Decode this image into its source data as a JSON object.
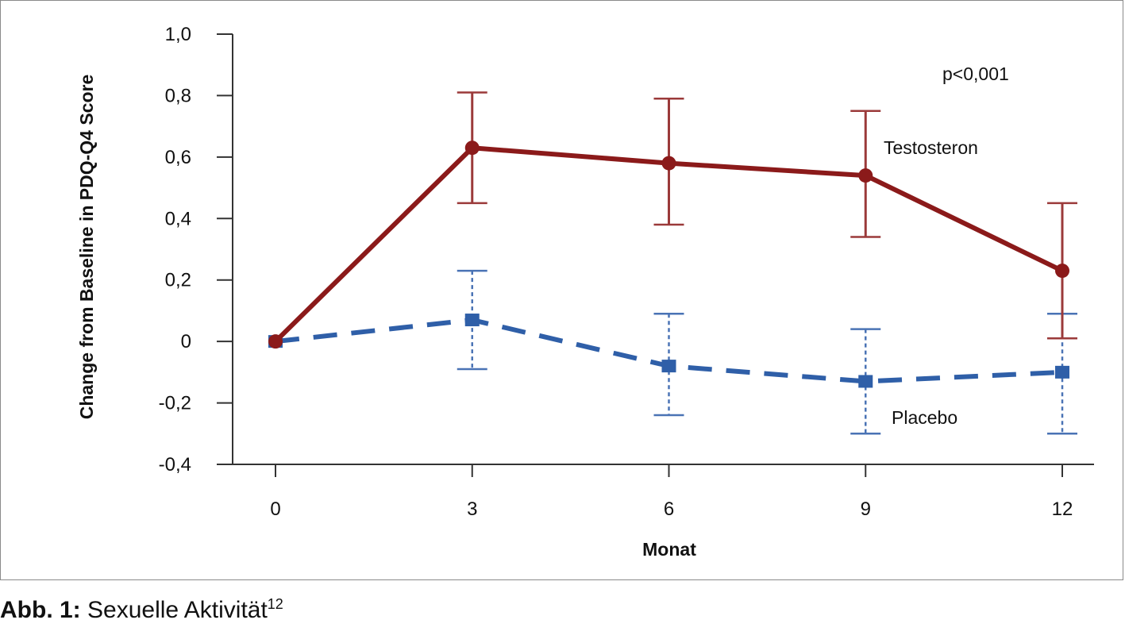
{
  "chart_data": {
    "type": "line",
    "title": "",
    "xlabel": "Monat",
    "ylabel": "Change from Baseline in PDQ-Q4 Score",
    "x": [
      0,
      3,
      6,
      9,
      12
    ],
    "x_tick_labels": [
      "0",
      "3",
      "6",
      "9",
      "12"
    ],
    "y_tick_values": [
      1.0,
      0.8,
      0.6,
      0.4,
      0.2,
      0,
      -0.2,
      -0.4
    ],
    "y_tick_labels": [
      "1,0",
      "0,8",
      "0,6",
      "0,4",
      "0,2",
      "0",
      "-0,2",
      "-0,4"
    ],
    "xlim": [
      0,
      12
    ],
    "ylim": [
      -0.4,
      1.0
    ],
    "grid": false,
    "legend": "none",
    "annotation": "p<0,001",
    "series": [
      {
        "name": "Testosteron",
        "color": "#8b1a1a",
        "line_style": "solid",
        "marker": "circle",
        "values": [
          0,
          0.63,
          0.58,
          0.54,
          0.23
        ],
        "error_low": [
          null,
          0.45,
          0.38,
          0.34,
          0.01
        ],
        "error_high": [
          null,
          0.81,
          0.79,
          0.75,
          0.45
        ]
      },
      {
        "name": "Placebo",
        "color": "#2f5fa8",
        "line_style": "dashed",
        "marker": "square",
        "values": [
          0,
          0.07,
          -0.08,
          -0.13,
          -0.1
        ],
        "error_low": [
          null,
          -0.09,
          -0.24,
          -0.3,
          -0.3
        ],
        "error_high": [
          null,
          0.23,
          0.09,
          0.04,
          0.09
        ]
      }
    ]
  },
  "caption": {
    "label": "Abb. 1:",
    "text": " Sexuelle Aktivität",
    "superscript": "12"
  }
}
